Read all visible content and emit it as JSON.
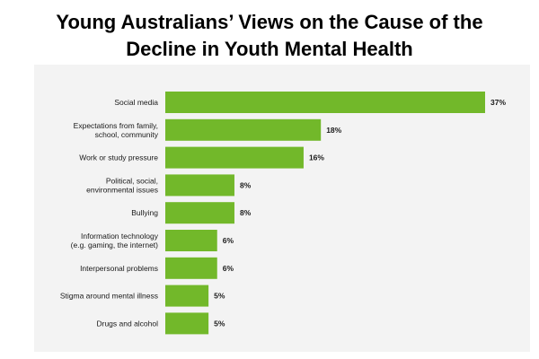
{
  "title_lines": [
    "Young Australians’ Views on the Cause of the",
    "Decline in Youth Mental Health"
  ],
  "colors": {
    "bar": "#72b82a",
    "panel_bg": "#f3f3f3",
    "text": "#1a1a1a"
  },
  "chart_data": {
    "type": "bar",
    "orientation": "horizontal",
    "title": "Young Australians’ Views on the Cause of the Decline in Youth Mental Health",
    "categories": [
      [
        "Social media"
      ],
      [
        "Expectations from family,",
        "school, community"
      ],
      [
        "Work or study pressure"
      ],
      [
        "Political, social,",
        "environmental issues"
      ],
      [
        "Bullying"
      ],
      [
        "Information technology",
        "(e.g. gaming, the internet)"
      ],
      [
        "Interpersonal problems"
      ],
      [
        "Stigma around mental illness"
      ],
      [
        "Drugs and alcohol"
      ]
    ],
    "values": [
      37,
      18,
      16,
      8,
      8,
      6,
      6,
      5,
      5
    ],
    "value_labels": [
      "37%",
      "18%",
      "16%",
      "8%",
      "8%",
      "6%",
      "6%",
      "5%",
      "5%"
    ],
    "xlim": [
      0,
      37
    ],
    "grid": false,
    "legend": "none"
  }
}
